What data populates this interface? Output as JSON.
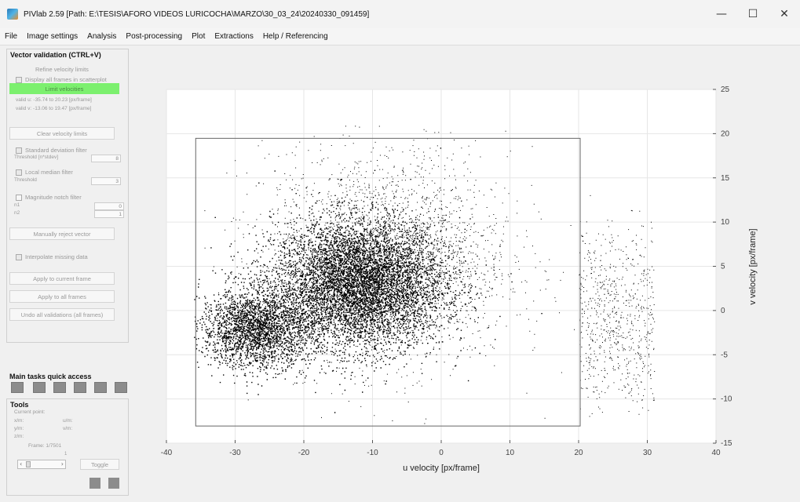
{
  "window": {
    "title": "PIVlab 2.59   [Path: E:\\TESIS\\AFORO VIDEOS LURICOCHA\\MARZO\\30_03_24\\20240330_091459]",
    "controls": {
      "minimize": "—",
      "maximize": "☐",
      "close": "✕"
    }
  },
  "menu": [
    "File",
    "Image settings",
    "Analysis",
    "Post-processing",
    "Plot",
    "Extractions",
    "Help / Referencing"
  ],
  "panel": {
    "title": "Vector validation (CTRL+V)",
    "refine_label": "Refine velocity limits",
    "display_all_label": "Display all frames in scatterplot",
    "limits_button": "Limit velocities",
    "valid_u": "valid u: -35.74 to 20.23 [px/frame]",
    "valid_v": "valid v: -13.06 to 19.47 [px/frame]",
    "clear_button": "Clear velocity limits",
    "stdev_label": "Standard deviation filter",
    "stdev_threshold_label": "Threshold [n*stdev]",
    "stdev_value": "8",
    "median_label": "Local median filter",
    "median_threshold_label": "Threshold",
    "median_value": "3",
    "magnitude_label": "Magnitude notch filter",
    "mag_n_label": "n1",
    "mag_n2_label": "n2",
    "mag_n_value": "0",
    "mag_n2_value": "1",
    "manual_button": "Manually reject vector",
    "interpolate_label": "Interpolate missing data",
    "apply_current_button": "Apply to current frame",
    "apply_all_button": "Apply to all frames",
    "undo_button": "Undo all validations (all frames)"
  },
  "quick_access": {
    "title": "Main tasks quick access"
  },
  "tools": {
    "title": "Tools",
    "current_point": "Current point:",
    "x_label": "x/m:",
    "y_label": "y/m:",
    "u_label": "u/m:",
    "v_label": "v/m:",
    "z_label": "z/m:",
    "frame_label": "Frame: 1/7501",
    "frame_number": "1",
    "toggle_button": "Toggle"
  },
  "chart_data": {
    "type": "scatter",
    "xlabel": "u velocity [px/frame]",
    "ylabel": "v velocity [px/frame]",
    "xlim": [
      -40,
      40
    ],
    "ylim": [
      -15,
      25
    ],
    "x_ticks": [
      -40,
      -30,
      -20,
      -10,
      0,
      10,
      20,
      30,
      40
    ],
    "y_ticks": [
      -15,
      -10,
      -5,
      0,
      5,
      10,
      15,
      20,
      25
    ],
    "x_tick_labels": [
      "-40",
      "-30",
      "-20",
      "-10",
      "0",
      "10",
      "20",
      "30",
      "40"
    ],
    "y_tick_labels": [
      "-15",
      "-10",
      "-5",
      "0",
      "5",
      "10",
      "15",
      "20",
      "25"
    ],
    "y_axis_side": "right",
    "grid": true,
    "point_color": "#000000",
    "limit_rectangle": {
      "u_min": -35.74,
      "u_max": 20.23,
      "v_min": -13.06,
      "v_max": 19.47
    },
    "cluster_center": {
      "u": -12,
      "v": 3
    },
    "cluster_u_range": [
      -36,
      20
    ],
    "cluster_v_range": [
      -13,
      19
    ],
    "sparse_outliers_u_range": [
      20,
      31
    ],
    "sparse_outliers_v_range": [
      -12,
      16
    ]
  }
}
